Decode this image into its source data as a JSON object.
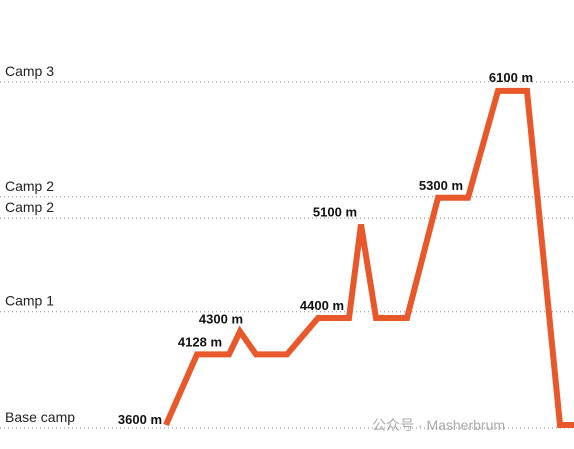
{
  "chart_data": {
    "type": "line",
    "x": [
      0,
      31,
      63,
      74,
      90,
      121,
      152,
      183,
      195,
      210,
      241,
      272,
      302,
      332,
      361,
      394,
      408
    ],
    "xlim": [
      0,
      408
    ],
    "series": [
      {
        "color": "#e8582a",
        "values": [
          3600,
          4128,
          4128,
          4300,
          4128,
          4128,
          4400,
          4400,
          5100,
          4400,
          4400,
          5300,
          5300,
          6100,
          6100,
          3600,
          3600
        ],
        "value_labels": [
          "3600 m",
          "4128 m",
          null,
          "4300 m",
          null,
          null,
          "4400 m",
          null,
          "5100 m",
          null,
          null,
          "5300 m",
          null,
          "6100 m",
          null,
          null,
          null
        ]
      }
    ],
    "ylim": [
      3420,
      6780
    ],
    "yticks": [
      {
        "value": 3600,
        "label": "Base camp"
      },
      {
        "value": 4470,
        "label": "Camp 1"
      },
      {
        "value": 5170,
        "label": "Camp 2"
      },
      {
        "value": 5330,
        "label": "Camp 2"
      },
      {
        "value": 6190,
        "label": "Camp 3"
      }
    ],
    "grid": true,
    "watermark": "公众号 · Masherbrum"
  }
}
